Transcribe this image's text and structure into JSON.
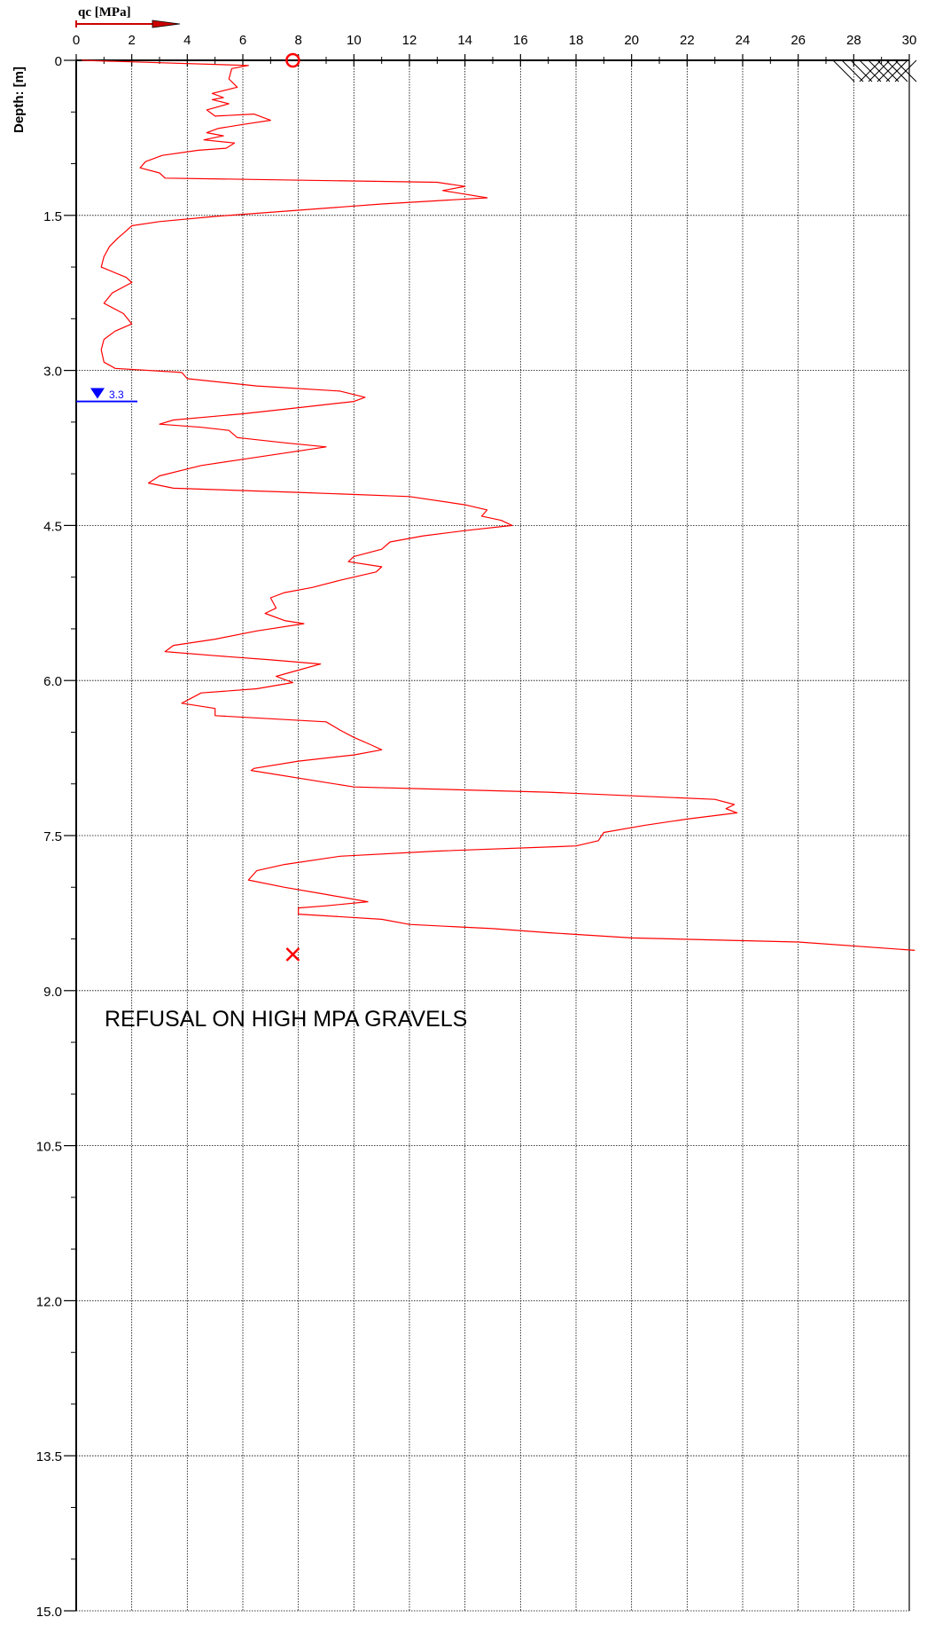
{
  "chart_data": {
    "type": "line",
    "xlabel": "qc [MPa]",
    "ylabel": "Depth: [m]",
    "xlim": [
      0,
      30
    ],
    "ylim": [
      0,
      15
    ],
    "x_ticks": [
      "0",
      "2",
      "4",
      "6",
      "8",
      "10",
      "12",
      "14",
      "16",
      "18",
      "20",
      "22",
      "24",
      "26",
      "28",
      "30"
    ],
    "y_ticks": [
      "0",
      "1.5",
      "3.0",
      "4.5",
      "6.0",
      "7.5",
      "9.0",
      "10.5",
      "12.0",
      "13.5",
      "15.0"
    ],
    "grid": true,
    "series": [
      {
        "color": "#ff0000",
        "points": [
          [
            0.2,
            0.0
          ],
          [
            6.2,
            0.05
          ],
          [
            5.6,
            0.08
          ],
          [
            5.5,
            0.18
          ],
          [
            5.8,
            0.26
          ],
          [
            4.9,
            0.32
          ],
          [
            5.3,
            0.36
          ],
          [
            4.9,
            0.38
          ],
          [
            5.5,
            0.42
          ],
          [
            4.7,
            0.48
          ],
          [
            5.0,
            0.54
          ],
          [
            6.4,
            0.52
          ],
          [
            7.0,
            0.58
          ],
          [
            6.0,
            0.62
          ],
          [
            5.1,
            0.66
          ],
          [
            4.7,
            0.7
          ],
          [
            5.3,
            0.73
          ],
          [
            4.6,
            0.77
          ],
          [
            5.7,
            0.8
          ],
          [
            5.4,
            0.85
          ],
          [
            4.4,
            0.87
          ],
          [
            3.1,
            0.92
          ],
          [
            2.5,
            0.98
          ],
          [
            2.3,
            1.04
          ],
          [
            3.0,
            1.09
          ],
          [
            3.2,
            1.14
          ],
          [
            13.0,
            1.18
          ],
          [
            14.0,
            1.22
          ],
          [
            13.2,
            1.26
          ],
          [
            14.8,
            1.33
          ],
          [
            11.0,
            1.39
          ],
          [
            8.0,
            1.45
          ],
          [
            5.0,
            1.51
          ],
          [
            3.0,
            1.56
          ],
          [
            2.0,
            1.6
          ],
          [
            1.8,
            1.65
          ],
          [
            1.5,
            1.72
          ],
          [
            1.2,
            1.8
          ],
          [
            1.0,
            1.9
          ],
          [
            0.9,
            2.0
          ],
          [
            1.8,
            2.1
          ],
          [
            2.0,
            2.15
          ],
          [
            1.3,
            2.25
          ],
          [
            1.0,
            2.35
          ],
          [
            1.7,
            2.45
          ],
          [
            2.0,
            2.55
          ],
          [
            1.4,
            2.62
          ],
          [
            1.0,
            2.7
          ],
          [
            0.9,
            2.8
          ],
          [
            1.0,
            2.92
          ],
          [
            1.4,
            2.98
          ],
          [
            3.8,
            3.02
          ],
          [
            4.0,
            3.08
          ],
          [
            6.5,
            3.15
          ],
          [
            9.5,
            3.2
          ],
          [
            10.4,
            3.26
          ],
          [
            10.0,
            3.3
          ],
          [
            8.0,
            3.36
          ],
          [
            6.0,
            3.42
          ],
          [
            3.5,
            3.48
          ],
          [
            3.0,
            3.52
          ],
          [
            4.5,
            3.55
          ],
          [
            5.5,
            3.58
          ],
          [
            5.8,
            3.65
          ],
          [
            7.5,
            3.7
          ],
          [
            9.0,
            3.74
          ],
          [
            7.5,
            3.8
          ],
          [
            6.0,
            3.86
          ],
          [
            4.5,
            3.92
          ],
          [
            3.0,
            4.02
          ],
          [
            2.6,
            4.09
          ],
          [
            3.5,
            4.14
          ],
          [
            8.0,
            4.18
          ],
          [
            12.0,
            4.22
          ],
          [
            14.0,
            4.3
          ],
          [
            14.8,
            4.35
          ],
          [
            14.6,
            4.41
          ],
          [
            15.3,
            4.45
          ],
          [
            15.7,
            4.5
          ],
          [
            14.0,
            4.55
          ],
          [
            12.5,
            4.6
          ],
          [
            11.3,
            4.66
          ],
          [
            11.0,
            4.73
          ],
          [
            10.0,
            4.8
          ],
          [
            9.8,
            4.85
          ],
          [
            11.0,
            4.9
          ],
          [
            10.8,
            4.95
          ],
          [
            9.5,
            5.03
          ],
          [
            8.5,
            5.1
          ],
          [
            7.5,
            5.15
          ],
          [
            7.0,
            5.2
          ],
          [
            7.2,
            5.3
          ],
          [
            6.8,
            5.35
          ],
          [
            7.5,
            5.42
          ],
          [
            8.2,
            5.45
          ],
          [
            6.5,
            5.52
          ],
          [
            5.0,
            5.6
          ],
          [
            3.5,
            5.66
          ],
          [
            3.2,
            5.72
          ],
          [
            5.0,
            5.76
          ],
          [
            7.0,
            5.8
          ],
          [
            8.8,
            5.84
          ],
          [
            8.0,
            5.9
          ],
          [
            7.2,
            5.96
          ],
          [
            7.8,
            6.02
          ],
          [
            6.5,
            6.08
          ],
          [
            4.5,
            6.12
          ],
          [
            3.8,
            6.22
          ],
          [
            5.0,
            6.27
          ],
          [
            5.0,
            6.34
          ],
          [
            9.0,
            6.4
          ],
          [
            9.5,
            6.48
          ],
          [
            10.0,
            6.55
          ],
          [
            10.6,
            6.62
          ],
          [
            11.0,
            6.67
          ],
          [
            10.0,
            6.72
          ],
          [
            8.0,
            6.78
          ],
          [
            6.4,
            6.85
          ],
          [
            6.3,
            6.87
          ],
          [
            10.0,
            7.03
          ],
          [
            17.0,
            7.08
          ],
          [
            23.0,
            7.15
          ],
          [
            23.7,
            7.2
          ],
          [
            23.4,
            7.24
          ],
          [
            23.8,
            7.28
          ],
          [
            22.0,
            7.34
          ],
          [
            20.5,
            7.4
          ],
          [
            19.0,
            7.47
          ],
          [
            18.8,
            7.55
          ],
          [
            18.0,
            7.6
          ],
          [
            13.0,
            7.65
          ],
          [
            9.5,
            7.7
          ],
          [
            7.5,
            7.78
          ],
          [
            6.5,
            7.84
          ],
          [
            6.2,
            7.93
          ],
          [
            7.5,
            8.0
          ],
          [
            9.0,
            8.07
          ],
          [
            10.5,
            8.14
          ],
          [
            9.0,
            8.18
          ],
          [
            8.0,
            8.2
          ],
          [
            8.0,
            8.26
          ],
          [
            11.0,
            8.31
          ],
          [
            12.0,
            8.36
          ],
          [
            15.0,
            8.4
          ],
          [
            17.0,
            8.44
          ],
          [
            20.0,
            8.49
          ],
          [
            26.0,
            8.53
          ],
          [
            30.2,
            8.61
          ]
        ]
      }
    ],
    "water_table": {
      "depth": 3.3,
      "label": "3.3",
      "color": "#0000ff"
    },
    "start_marker": {
      "symbol": "circle",
      "x": 7.8,
      "y": 0
    },
    "end_marker": {
      "symbol": "cross",
      "x": 7.8,
      "y": 8.65
    },
    "annotations": [
      {
        "text": "REFUSAL ON HIGH MPA GRAVELS"
      }
    ]
  }
}
